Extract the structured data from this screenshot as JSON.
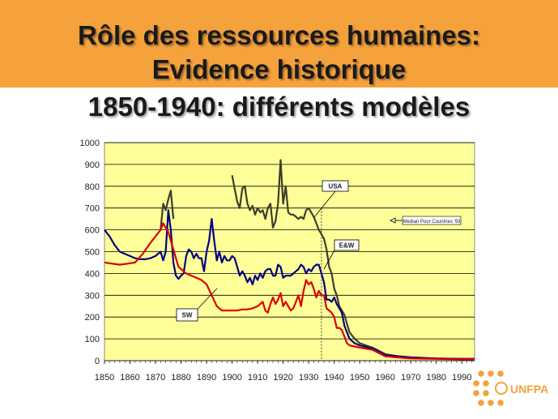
{
  "title_lines": [
    "Rôle des ressources humaines:",
    "Evidence historique",
    "1850-1940:  différents modèles"
  ],
  "logo": {
    "text": "UNFPA"
  },
  "colors": {
    "banner": "#f5a23c",
    "plot_bg": "#ffff99",
    "usa": "#3d3d2a",
    "ew": "#000080",
    "sw": "#dd0000"
  },
  "chart_data": {
    "type": "line",
    "xlim": [
      1850,
      1995
    ],
    "ylim": [
      0,
      1000
    ],
    "x_ticks": [
      "1850",
      "1860",
      "1870",
      "1880",
      "1890",
      "1900",
      "1910",
      "1920",
      "1930",
      "1940",
      "1950",
      "1960",
      "1970",
      "1980",
      "1990"
    ],
    "y_ticks": [
      "0",
      "100",
      "200",
      "300",
      "400",
      "500",
      "600",
      "700",
      "800",
      "900",
      "1000"
    ],
    "grid": true,
    "reference_line_x": 1935,
    "annotations": [
      "USA",
      "E&W",
      "SW",
      "Median Poor Countries '93"
    ],
    "series": [
      {
        "name": "USA",
        "color": "#3d3d2a",
        "points": [
          [
            1900,
            850
          ],
          [
            1901,
            790
          ],
          [
            1902,
            730
          ],
          [
            1903,
            700
          ],
          [
            1904,
            790
          ],
          [
            1905,
            800
          ],
          [
            1906,
            720
          ],
          [
            1907,
            690
          ],
          [
            1908,
            710
          ],
          [
            1909,
            670
          ],
          [
            1910,
            700
          ],
          [
            1911,
            680
          ],
          [
            1912,
            690
          ],
          [
            1913,
            650
          ],
          [
            1914,
            700
          ],
          [
            1915,
            720
          ],
          [
            1916,
            610
          ],
          [
            1917,
            640
          ],
          [
            1918,
            720
          ],
          [
            1919,
            920
          ],
          [
            1920,
            720
          ],
          [
            1921,
            800
          ],
          [
            1922,
            680
          ],
          [
            1923,
            670
          ],
          [
            1924,
            670
          ],
          [
            1925,
            660
          ],
          [
            1926,
            650
          ],
          [
            1927,
            660
          ],
          [
            1928,
            650
          ],
          [
            1929,
            690
          ],
          [
            1930,
            700
          ],
          [
            1931,
            680
          ],
          [
            1932,
            660
          ],
          [
            1933,
            630
          ],
          [
            1934,
            600
          ],
          [
            1935,
            580
          ],
          [
            1936,
            560
          ],
          [
            1937,
            510
          ],
          [
            1938,
            430
          ],
          [
            1939,
            400
          ],
          [
            1940,
            330
          ],
          [
            1941,
            300
          ],
          [
            1942,
            250
          ],
          [
            1943,
            230
          ],
          [
            1944,
            210
          ],
          [
            1945,
            170
          ],
          [
            1946,
            130
          ],
          [
            1948,
            100
          ],
          [
            1950,
            80
          ],
          [
            1955,
            60
          ],
          [
            1960,
            30
          ],
          [
            1965,
            20
          ],
          [
            1970,
            15
          ],
          [
            1975,
            12
          ],
          [
            1980,
            10
          ],
          [
            1990,
            8
          ],
          [
            1995,
            8
          ]
        ]
      },
      {
        "name": "USA (early)",
        "color": "#3d3d2a",
        "points": [
          [
            1872,
            600
          ],
          [
            1873,
            720
          ],
          [
            1874,
            690
          ],
          [
            1875,
            740
          ],
          [
            1876,
            780
          ],
          [
            1877,
            650
          ]
        ]
      },
      {
        "name": "E&W",
        "color": "#000080",
        "points": [
          [
            1850,
            600
          ],
          [
            1852,
            570
          ],
          [
            1854,
            530
          ],
          [
            1856,
            500
          ],
          [
            1858,
            490
          ],
          [
            1860,
            480
          ],
          [
            1862,
            470
          ],
          [
            1864,
            465
          ],
          [
            1866,
            465
          ],
          [
            1868,
            470
          ],
          [
            1870,
            480
          ],
          [
            1872,
            500
          ],
          [
            1873,
            460
          ],
          [
            1874,
            500
          ],
          [
            1875,
            690
          ],
          [
            1876,
            600
          ],
          [
            1877,
            450
          ],
          [
            1878,
            390
          ],
          [
            1879,
            375
          ],
          [
            1880,
            390
          ],
          [
            1881,
            400
          ],
          [
            1882,
            480
          ],
          [
            1883,
            510
          ],
          [
            1884,
            500
          ],
          [
            1885,
            470
          ],
          [
            1886,
            490
          ],
          [
            1887,
            470
          ],
          [
            1888,
            470
          ],
          [
            1889,
            410
          ],
          [
            1890,
            500
          ],
          [
            1891,
            550
          ],
          [
            1892,
            650
          ],
          [
            1893,
            550
          ],
          [
            1894,
            460
          ],
          [
            1895,
            500
          ],
          [
            1896,
            450
          ],
          [
            1897,
            480
          ],
          [
            1898,
            460
          ],
          [
            1899,
            460
          ],
          [
            1900,
            480
          ],
          [
            1901,
            470
          ],
          [
            1902,
            430
          ],
          [
            1903,
            390
          ],
          [
            1904,
            410
          ],
          [
            1905,
            390
          ],
          [
            1906,
            360
          ],
          [
            1907,
            380
          ],
          [
            1908,
            350
          ],
          [
            1909,
            390
          ],
          [
            1910,
            370
          ],
          [
            1911,
            400
          ],
          [
            1912,
            380
          ],
          [
            1913,
            410
          ],
          [
            1914,
            420
          ],
          [
            1915,
            420
          ],
          [
            1916,
            390
          ],
          [
            1917,
            390
          ],
          [
            1918,
            440
          ],
          [
            1919,
            430
          ],
          [
            1920,
            380
          ],
          [
            1921,
            390
          ],
          [
            1922,
            390
          ],
          [
            1923,
            390
          ],
          [
            1924,
            400
          ],
          [
            1925,
            410
          ],
          [
            1926,
            420
          ],
          [
            1927,
            440
          ],
          [
            1928,
            430
          ],
          [
            1929,
            400
          ],
          [
            1930,
            420
          ],
          [
            1931,
            410
          ],
          [
            1932,
            430
          ],
          [
            1933,
            440
          ],
          [
            1934,
            440
          ],
          [
            1935,
            400
          ],
          [
            1936,
            360
          ],
          [
            1937,
            280
          ],
          [
            1938,
            280
          ],
          [
            1939,
            270
          ],
          [
            1940,
            290
          ],
          [
            1941,
            260
          ],
          [
            1942,
            240
          ],
          [
            1943,
            220
          ],
          [
            1944,
            160
          ],
          [
            1945,
            130
          ],
          [
            1946,
            100
          ],
          [
            1948,
            80
          ],
          [
            1950,
            70
          ],
          [
            1955,
            55
          ],
          [
            1960,
            25
          ],
          [
            1965,
            20
          ],
          [
            1970,
            15
          ],
          [
            1980,
            10
          ],
          [
            1990,
            8
          ],
          [
            1995,
            8
          ]
        ]
      },
      {
        "name": "SW",
        "color": "#dd0000",
        "points": [
          [
            1850,
            450
          ],
          [
            1853,
            445
          ],
          [
            1856,
            440
          ],
          [
            1859,
            445
          ],
          [
            1862,
            450
          ],
          [
            1865,
            490
          ],
          [
            1868,
            540
          ],
          [
            1870,
            570
          ],
          [
            1872,
            600
          ],
          [
            1873,
            630
          ],
          [
            1874,
            610
          ],
          [
            1875,
            590
          ],
          [
            1876,
            550
          ],
          [
            1877,
            510
          ],
          [
            1878,
            470
          ],
          [
            1879,
            430
          ],
          [
            1880,
            420
          ],
          [
            1882,
            400
          ],
          [
            1884,
            390
          ],
          [
            1886,
            380
          ],
          [
            1888,
            370
          ],
          [
            1890,
            350
          ],
          [
            1892,
            300
          ],
          [
            1894,
            250
          ],
          [
            1896,
            230
          ],
          [
            1898,
            230
          ],
          [
            1900,
            230
          ],
          [
            1902,
            230
          ],
          [
            1904,
            235
          ],
          [
            1906,
            235
          ],
          [
            1908,
            240
          ],
          [
            1910,
            250
          ],
          [
            1911,
            260
          ],
          [
            1912,
            270
          ],
          [
            1913,
            230
          ],
          [
            1914,
            220
          ],
          [
            1915,
            260
          ],
          [
            1916,
            290
          ],
          [
            1917,
            260
          ],
          [
            1918,
            280
          ],
          [
            1919,
            310
          ],
          [
            1920,
            250
          ],
          [
            1921,
            270
          ],
          [
            1922,
            250
          ],
          [
            1923,
            230
          ],
          [
            1924,
            240
          ],
          [
            1925,
            270
          ],
          [
            1926,
            300
          ],
          [
            1927,
            250
          ],
          [
            1928,
            320
          ],
          [
            1929,
            370
          ],
          [
            1930,
            350
          ],
          [
            1931,
            360
          ],
          [
            1932,
            330
          ],
          [
            1933,
            290
          ],
          [
            1934,
            320
          ],
          [
            1935,
            300
          ],
          [
            1936,
            300
          ],
          [
            1937,
            240
          ],
          [
            1938,
            230
          ],
          [
            1939,
            220
          ],
          [
            1940,
            200
          ],
          [
            1941,
            150
          ],
          [
            1942,
            150
          ],
          [
            1943,
            140
          ],
          [
            1944,
            110
          ],
          [
            1945,
            80
          ],
          [
            1946,
            70
          ],
          [
            1948,
            65
          ],
          [
            1950,
            60
          ],
          [
            1955,
            50
          ],
          [
            1960,
            20
          ],
          [
            1965,
            15
          ],
          [
            1970,
            10
          ],
          [
            1980,
            8
          ],
          [
            1990,
            6
          ],
          [
            1995,
            6
          ]
        ]
      }
    ]
  }
}
